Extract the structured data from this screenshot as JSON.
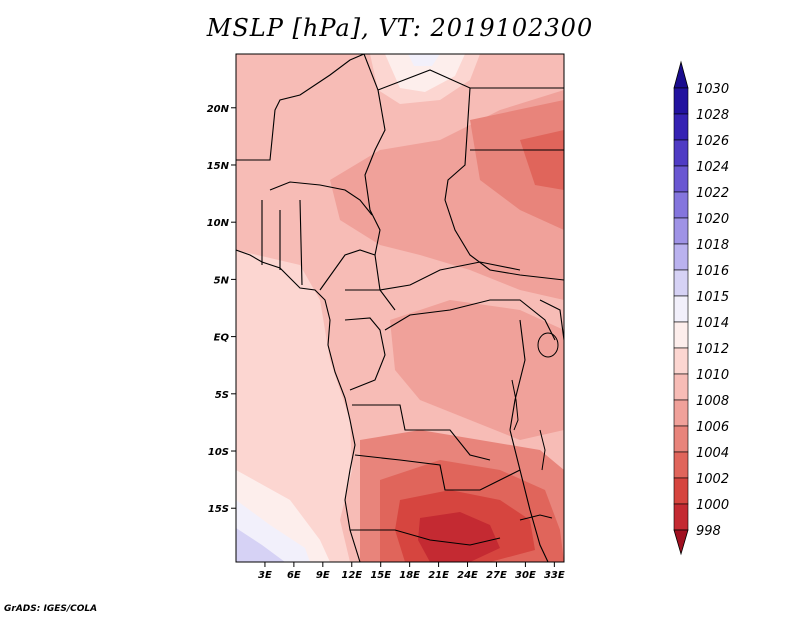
{
  "title": "MSLP [hPa], VT: 2019102300",
  "credit": "GrADS: IGES/COLA",
  "lat_ticks": [
    {
      "label": "20N",
      "lat": 20
    },
    {
      "label": "15N",
      "lat": 15
    },
    {
      "label": "10N",
      "lat": 10
    },
    {
      "label": "5N",
      "lat": 5
    },
    {
      "label": "EQ",
      "lat": 0
    },
    {
      "label": "5S",
      "lat": -5
    },
    {
      "label": "10S",
      "lat": -10
    },
    {
      "label": "15S",
      "lat": -15
    }
  ],
  "lon_ticks": [
    {
      "label": "3E",
      "lon": 3
    },
    {
      "label": "6E",
      "lon": 6
    },
    {
      "label": "9E",
      "lon": 9
    },
    {
      "label": "12E",
      "lon": 12
    },
    {
      "label": "15E",
      "lon": 15
    },
    {
      "label": "18E",
      "lon": 18
    },
    {
      "label": "21E",
      "lon": 21
    },
    {
      "label": "24E",
      "lon": 24
    },
    {
      "label": "27E",
      "lon": 27
    },
    {
      "label": "30E",
      "lon": 30
    },
    {
      "label": "33E",
      "lon": 33
    }
  ],
  "colorbar": {
    "bins": [
      {
        "label": "998",
        "color": "#b2182b"
      },
      {
        "label": "1000",
        "color": "#c42a32"
      },
      {
        "label": "1002",
        "color": "#d6453f"
      },
      {
        "label": "1004",
        "color": "#e0655b"
      },
      {
        "label": "1006",
        "color": "#e8847b"
      },
      {
        "label": "1008",
        "color": "#f0a19a"
      },
      {
        "label": "1010",
        "color": "#f7bcb6"
      },
      {
        "label": "1012",
        "color": "#fcd6d1"
      },
      {
        "label": "1014",
        "color": "#fdeeec"
      },
      {
        "label": "1015",
        "color": "#f2f0fb"
      },
      {
        "label": "1016",
        "color": "#d6d2f5"
      },
      {
        "label": "1018",
        "color": "#bab2ef"
      },
      {
        "label": "1020",
        "color": "#9f93e6"
      },
      {
        "label": "1022",
        "color": "#8475dd"
      },
      {
        "label": "1024",
        "color": "#6a57d2"
      },
      {
        "label": "1026",
        "color": "#4f3bc4"
      },
      {
        "label": "1028",
        "color": "#3522b3"
      },
      {
        "label": "1030",
        "color": "#22129f"
      }
    ],
    "top_arrow_color": "#1a0c8e",
    "bottom_arrow_color": "#a01020"
  }
}
